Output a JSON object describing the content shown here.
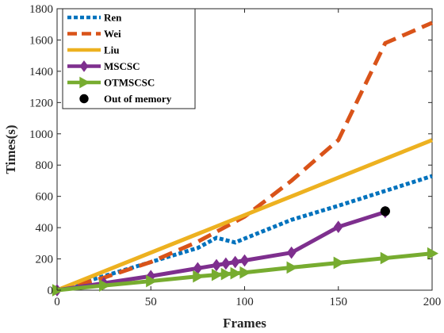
{
  "chart_data": {
    "type": "line",
    "title": "",
    "xlabel": "Frames",
    "ylabel": "Times(s)",
    "xlim": [
      0,
      200
    ],
    "ylim": [
      0,
      1800
    ],
    "xticks": [
      0,
      50,
      100,
      150,
      200
    ],
    "yticks": [
      0,
      200,
      400,
      600,
      800,
      1000,
      1200,
      1400,
      1600,
      1800
    ],
    "grid": false,
    "legend_position": "top-left",
    "series": [
      {
        "name": "Ren",
        "color": "#0072BD",
        "style": "dotted",
        "marker": "none",
        "x": [
          0,
          25,
          50,
          75,
          85,
          95,
          100,
          125,
          150,
          175,
          200
        ],
        "y": [
          0,
          90,
          180,
          270,
          335,
          305,
          330,
          450,
          540,
          635,
          730
        ]
      },
      {
        "name": "Wei",
        "color": "#D95319",
        "style": "dashed",
        "marker": "none",
        "x": [
          0,
          25,
          50,
          75,
          100,
          125,
          150,
          175,
          200
        ],
        "y": [
          0,
          80,
          180,
          310,
          470,
          700,
          960,
          1580,
          1710
        ]
      },
      {
        "name": "Liu",
        "color": "#EDB120",
        "style": "solid",
        "marker": "none",
        "x": [
          0,
          200
        ],
        "y": [
          0,
          960
        ]
      },
      {
        "name": "MSCSC",
        "color": "#7E2F8E",
        "style": "solid",
        "marker": "diamond",
        "x": [
          0,
          25,
          50,
          75,
          85,
          90,
          95,
          100,
          125,
          150,
          175
        ],
        "y": [
          0,
          45,
          90,
          140,
          160,
          170,
          180,
          190,
          240,
          405,
          500
        ]
      },
      {
        "name": "OTMSCSC",
        "color": "#77AC30",
        "style": "solid",
        "marker": "triangle-right",
        "x": [
          0,
          25,
          50,
          75,
          85,
          90,
          95,
          100,
          125,
          150,
          175,
          200
        ],
        "y": [
          0,
          30,
          58,
          88,
          98,
          103,
          108,
          113,
          145,
          175,
          205,
          235
        ]
      },
      {
        "name": "Out of memory",
        "color": "#000000",
        "style": "none",
        "marker": "circle",
        "x": [
          175
        ],
        "y": [
          505
        ]
      }
    ]
  }
}
